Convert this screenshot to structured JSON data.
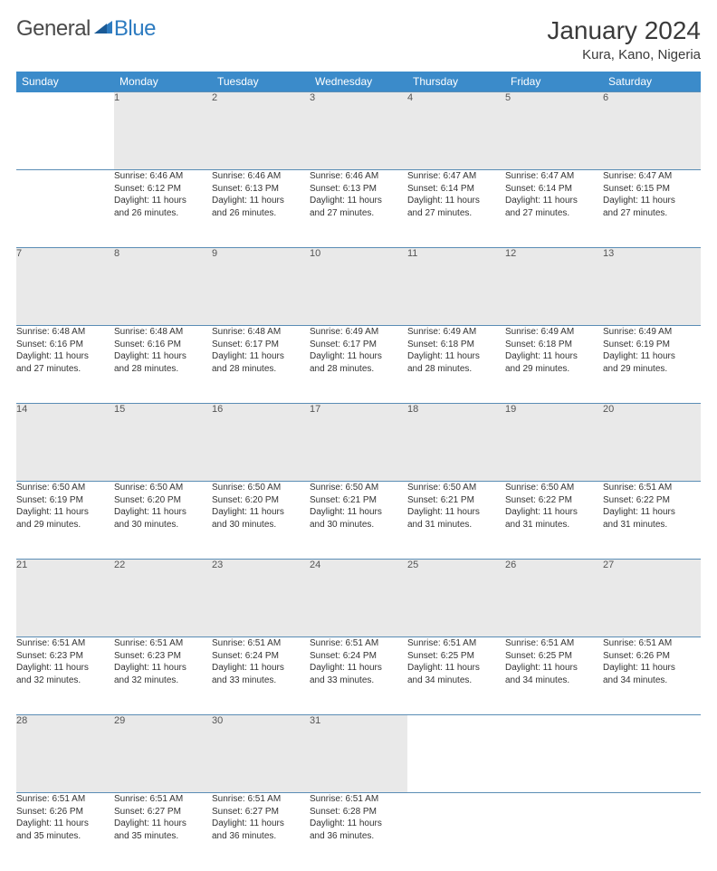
{
  "logo": {
    "part1": "General",
    "part2": "Blue"
  },
  "title": "January 2024",
  "location": "Kura, Kano, Nigeria",
  "colors": {
    "header_bg": "#3b8bca",
    "header_text": "#ffffff",
    "daynum_bg": "#e9e9e9",
    "border": "#5a8db5",
    "logo_blue": "#2d7bc0",
    "text": "#333333"
  },
  "weekdays": [
    "Sunday",
    "Monday",
    "Tuesday",
    "Wednesday",
    "Thursday",
    "Friday",
    "Saturday"
  ],
  "weeks": [
    {
      "nums": [
        "",
        "1",
        "2",
        "3",
        "4",
        "5",
        "6"
      ],
      "cells": [
        null,
        {
          "sr": "Sunrise: 6:46 AM",
          "ss": "Sunset: 6:12 PM",
          "d1": "Daylight: 11 hours",
          "d2": "and 26 minutes."
        },
        {
          "sr": "Sunrise: 6:46 AM",
          "ss": "Sunset: 6:13 PM",
          "d1": "Daylight: 11 hours",
          "d2": "and 26 minutes."
        },
        {
          "sr": "Sunrise: 6:46 AM",
          "ss": "Sunset: 6:13 PM",
          "d1": "Daylight: 11 hours",
          "d2": "and 27 minutes."
        },
        {
          "sr": "Sunrise: 6:47 AM",
          "ss": "Sunset: 6:14 PM",
          "d1": "Daylight: 11 hours",
          "d2": "and 27 minutes."
        },
        {
          "sr": "Sunrise: 6:47 AM",
          "ss": "Sunset: 6:14 PM",
          "d1": "Daylight: 11 hours",
          "d2": "and 27 minutes."
        },
        {
          "sr": "Sunrise: 6:47 AM",
          "ss": "Sunset: 6:15 PM",
          "d1": "Daylight: 11 hours",
          "d2": "and 27 minutes."
        }
      ]
    },
    {
      "nums": [
        "7",
        "8",
        "9",
        "10",
        "11",
        "12",
        "13"
      ],
      "cells": [
        {
          "sr": "Sunrise: 6:48 AM",
          "ss": "Sunset: 6:16 PM",
          "d1": "Daylight: 11 hours",
          "d2": "and 27 minutes."
        },
        {
          "sr": "Sunrise: 6:48 AM",
          "ss": "Sunset: 6:16 PM",
          "d1": "Daylight: 11 hours",
          "d2": "and 28 minutes."
        },
        {
          "sr": "Sunrise: 6:48 AM",
          "ss": "Sunset: 6:17 PM",
          "d1": "Daylight: 11 hours",
          "d2": "and 28 minutes."
        },
        {
          "sr": "Sunrise: 6:49 AM",
          "ss": "Sunset: 6:17 PM",
          "d1": "Daylight: 11 hours",
          "d2": "and 28 minutes."
        },
        {
          "sr": "Sunrise: 6:49 AM",
          "ss": "Sunset: 6:18 PM",
          "d1": "Daylight: 11 hours",
          "d2": "and 28 minutes."
        },
        {
          "sr": "Sunrise: 6:49 AM",
          "ss": "Sunset: 6:18 PM",
          "d1": "Daylight: 11 hours",
          "d2": "and 29 minutes."
        },
        {
          "sr": "Sunrise: 6:49 AM",
          "ss": "Sunset: 6:19 PM",
          "d1": "Daylight: 11 hours",
          "d2": "and 29 minutes."
        }
      ]
    },
    {
      "nums": [
        "14",
        "15",
        "16",
        "17",
        "18",
        "19",
        "20"
      ],
      "cells": [
        {
          "sr": "Sunrise: 6:50 AM",
          "ss": "Sunset: 6:19 PM",
          "d1": "Daylight: 11 hours",
          "d2": "and 29 minutes."
        },
        {
          "sr": "Sunrise: 6:50 AM",
          "ss": "Sunset: 6:20 PM",
          "d1": "Daylight: 11 hours",
          "d2": "and 30 minutes."
        },
        {
          "sr": "Sunrise: 6:50 AM",
          "ss": "Sunset: 6:20 PM",
          "d1": "Daylight: 11 hours",
          "d2": "and 30 minutes."
        },
        {
          "sr": "Sunrise: 6:50 AM",
          "ss": "Sunset: 6:21 PM",
          "d1": "Daylight: 11 hours",
          "d2": "and 30 minutes."
        },
        {
          "sr": "Sunrise: 6:50 AM",
          "ss": "Sunset: 6:21 PM",
          "d1": "Daylight: 11 hours",
          "d2": "and 31 minutes."
        },
        {
          "sr": "Sunrise: 6:50 AM",
          "ss": "Sunset: 6:22 PM",
          "d1": "Daylight: 11 hours",
          "d2": "and 31 minutes."
        },
        {
          "sr": "Sunrise: 6:51 AM",
          "ss": "Sunset: 6:22 PM",
          "d1": "Daylight: 11 hours",
          "d2": "and 31 minutes."
        }
      ]
    },
    {
      "nums": [
        "21",
        "22",
        "23",
        "24",
        "25",
        "26",
        "27"
      ],
      "cells": [
        {
          "sr": "Sunrise: 6:51 AM",
          "ss": "Sunset: 6:23 PM",
          "d1": "Daylight: 11 hours",
          "d2": "and 32 minutes."
        },
        {
          "sr": "Sunrise: 6:51 AM",
          "ss": "Sunset: 6:23 PM",
          "d1": "Daylight: 11 hours",
          "d2": "and 32 minutes."
        },
        {
          "sr": "Sunrise: 6:51 AM",
          "ss": "Sunset: 6:24 PM",
          "d1": "Daylight: 11 hours",
          "d2": "and 33 minutes."
        },
        {
          "sr": "Sunrise: 6:51 AM",
          "ss": "Sunset: 6:24 PM",
          "d1": "Daylight: 11 hours",
          "d2": "and 33 minutes."
        },
        {
          "sr": "Sunrise: 6:51 AM",
          "ss": "Sunset: 6:25 PM",
          "d1": "Daylight: 11 hours",
          "d2": "and 34 minutes."
        },
        {
          "sr": "Sunrise: 6:51 AM",
          "ss": "Sunset: 6:25 PM",
          "d1": "Daylight: 11 hours",
          "d2": "and 34 minutes."
        },
        {
          "sr": "Sunrise: 6:51 AM",
          "ss": "Sunset: 6:26 PM",
          "d1": "Daylight: 11 hours",
          "d2": "and 34 minutes."
        }
      ]
    },
    {
      "nums": [
        "28",
        "29",
        "30",
        "31",
        "",
        "",
        ""
      ],
      "cells": [
        {
          "sr": "Sunrise: 6:51 AM",
          "ss": "Sunset: 6:26 PM",
          "d1": "Daylight: 11 hours",
          "d2": "and 35 minutes."
        },
        {
          "sr": "Sunrise: 6:51 AM",
          "ss": "Sunset: 6:27 PM",
          "d1": "Daylight: 11 hours",
          "d2": "and 35 minutes."
        },
        {
          "sr": "Sunrise: 6:51 AM",
          "ss": "Sunset: 6:27 PM",
          "d1": "Daylight: 11 hours",
          "d2": "and 36 minutes."
        },
        {
          "sr": "Sunrise: 6:51 AM",
          "ss": "Sunset: 6:28 PM",
          "d1": "Daylight: 11 hours",
          "d2": "and 36 minutes."
        },
        null,
        null,
        null
      ]
    }
  ]
}
